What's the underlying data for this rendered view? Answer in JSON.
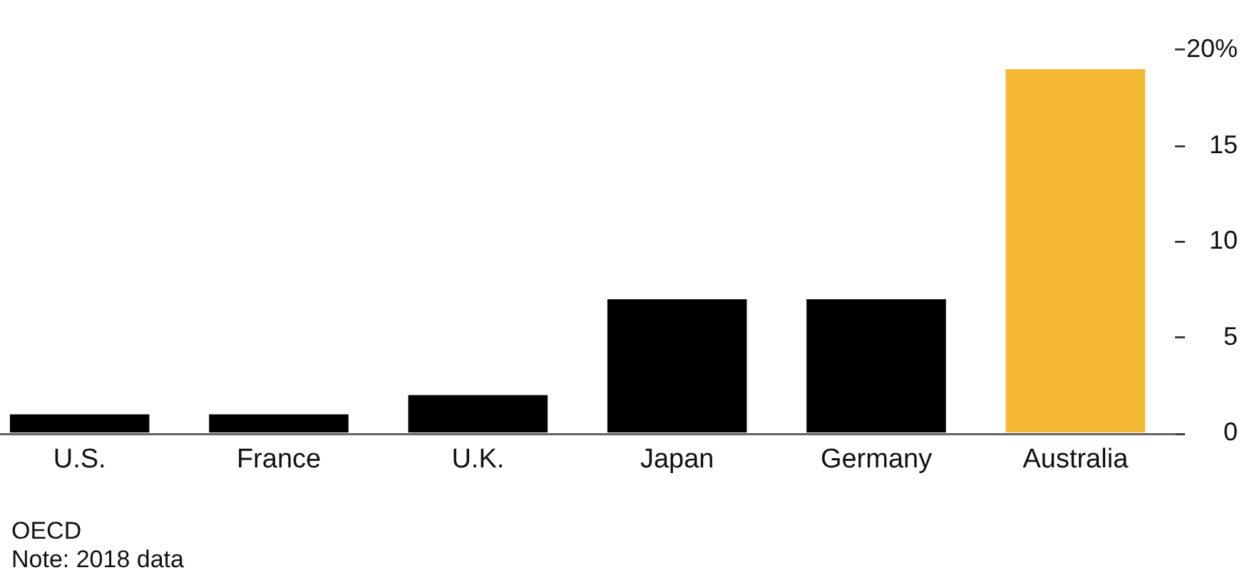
{
  "chart_data": {
    "type": "bar",
    "categories": [
      "U.S.",
      "France",
      "U.K.",
      "Japan",
      "Germany",
      "Australia"
    ],
    "values": [
      1,
      1,
      2,
      7,
      7,
      19
    ],
    "colors": [
      "#000000",
      "#000000",
      "#000000",
      "#000000",
      "#000000",
      "#f4b935"
    ],
    "ylim": [
      0,
      20
    ],
    "yticks": [
      0,
      5,
      10,
      15,
      {
        "value": 20,
        "label": "20%"
      }
    ],
    "grid": false,
    "annotations": [
      "OECD",
      "Note: 2018 data"
    ]
  }
}
